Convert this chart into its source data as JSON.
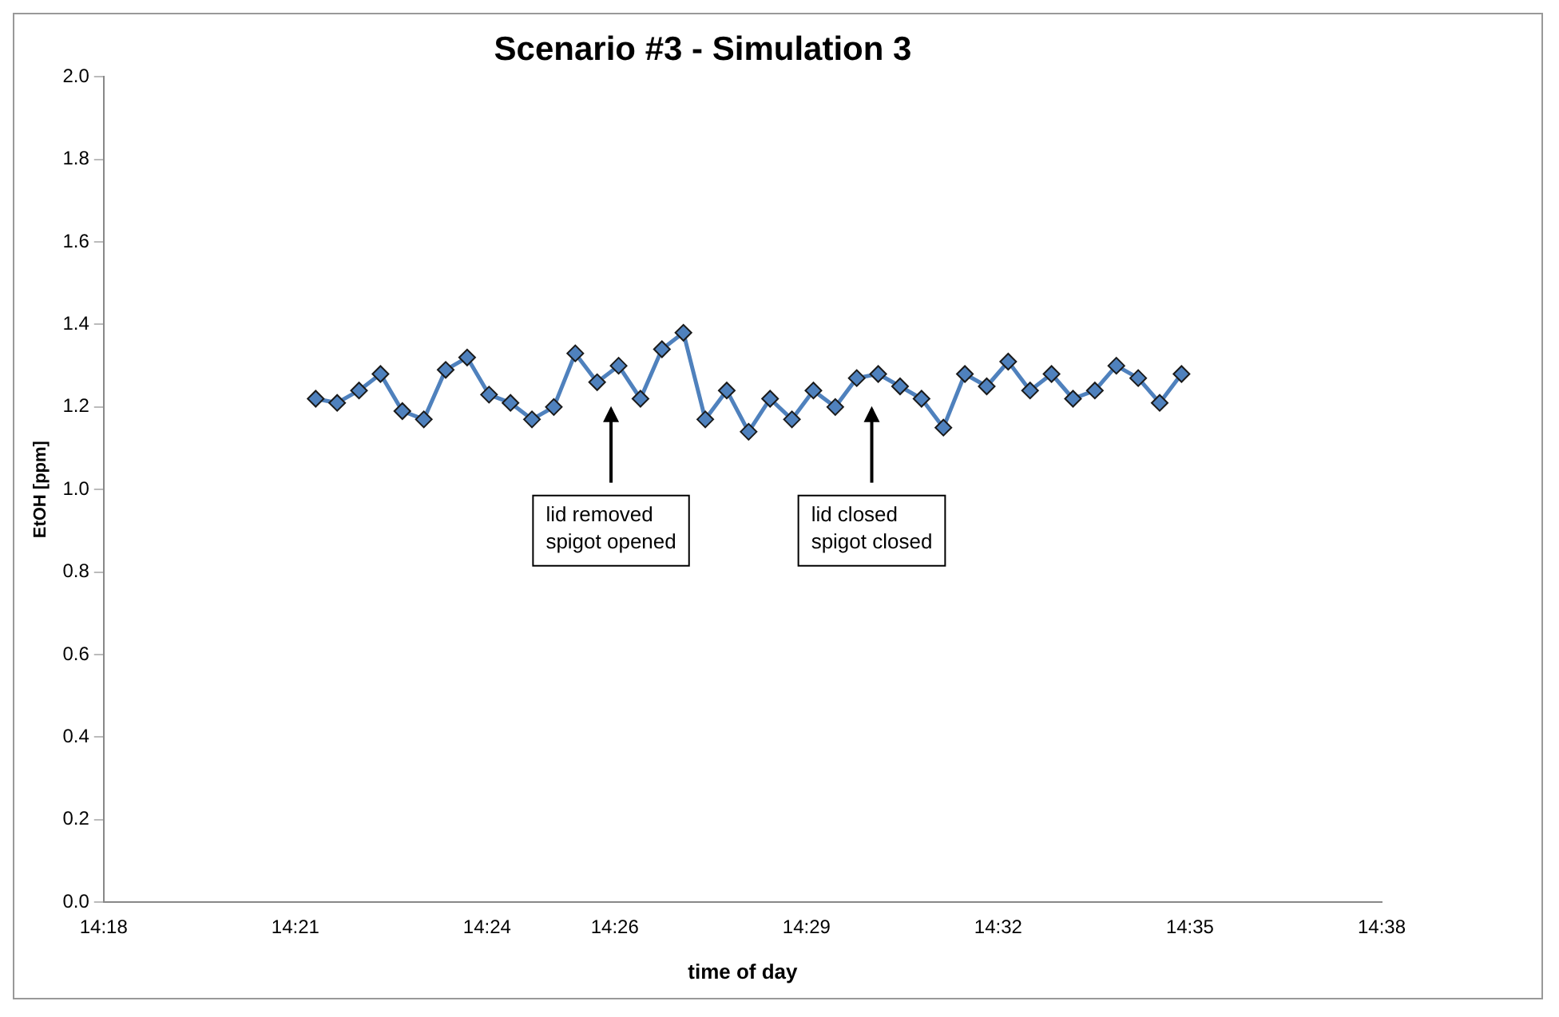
{
  "chart_data": {
    "type": "line",
    "title": "Scenario #3 - Simulation 3",
    "xlabel": "time of day",
    "ylabel": "EtOH [ppm]",
    "x": [
      14.3553,
      14.3609,
      14.3666,
      14.3722,
      14.3779,
      14.3835,
      14.3892,
      14.3948,
      14.4005,
      14.4061,
      14.4117,
      14.4174,
      14.423,
      14.4287,
      14.4343,
      14.44,
      14.4456,
      14.4512,
      14.4569,
      14.4625,
      14.4682,
      14.4738,
      14.4795,
      14.4851,
      14.4908,
      14.4964,
      14.502,
      14.5077,
      14.5133,
      14.519,
      14.5246,
      14.5303,
      14.5359,
      14.5416,
      14.5472,
      14.5528,
      14.5585,
      14.5641,
      14.5698,
      14.5754,
      14.5811
    ],
    "series": [
      {
        "color": "#4f81bd",
        "values": [
          1.22,
          1.21,
          1.24,
          1.28,
          1.19,
          1.17,
          1.29,
          1.32,
          1.23,
          1.21,
          1.17,
          1.2,
          1.33,
          1.26,
          1.3,
          1.22,
          1.34,
          1.38,
          1.17,
          1.24,
          1.14,
          1.22,
          1.17,
          1.24,
          1.2,
          1.27,
          1.28,
          1.25,
          1.22,
          1.15,
          1.28,
          1.25,
          1.31,
          1.24,
          1.28,
          1.22,
          1.24,
          1.3,
          1.27,
          1.21,
          1.28
        ]
      }
    ],
    "xlim": [
      14.3,
      14.6333
    ],
    "xticks": [
      {
        "value": 14.3,
        "label": "14:18"
      },
      {
        "value": 14.35,
        "label": "14:21"
      },
      {
        "value": 14.4,
        "label": "14:24"
      },
      {
        "value": 14.4333,
        "label": "14:26"
      },
      {
        "value": 14.4833,
        "label": "14:29"
      },
      {
        "value": 14.5333,
        "label": "14:32"
      },
      {
        "value": 14.5833,
        "label": "14:35"
      },
      {
        "value": 14.6333,
        "label": "14:38"
      }
    ],
    "ylim": [
      0,
      2
    ],
    "yticks": [
      {
        "value": 0,
        "label": "0.0"
      },
      {
        "value": 0.2,
        "label": "0.2"
      },
      {
        "value": 0.4,
        "label": "0.4"
      },
      {
        "value": 0.6,
        "label": "0.6"
      },
      {
        "value": 0.8,
        "label": "0.8"
      },
      {
        "value": 1,
        "label": "1.0"
      },
      {
        "value": 1.2,
        "label": "1.2"
      },
      {
        "value": 1.4,
        "label": "1.4"
      },
      {
        "value": 1.6,
        "label": "1.6"
      },
      {
        "value": 1.8,
        "label": "1.8"
      },
      {
        "value": 2,
        "label": "2.0"
      }
    ],
    "annotations": [
      "lid removed\nspigot opened",
      "lid closed\nspigot closed"
    ],
    "grid": false,
    "legend": false,
    "marker": "diamond",
    "line_style": "solid"
  }
}
